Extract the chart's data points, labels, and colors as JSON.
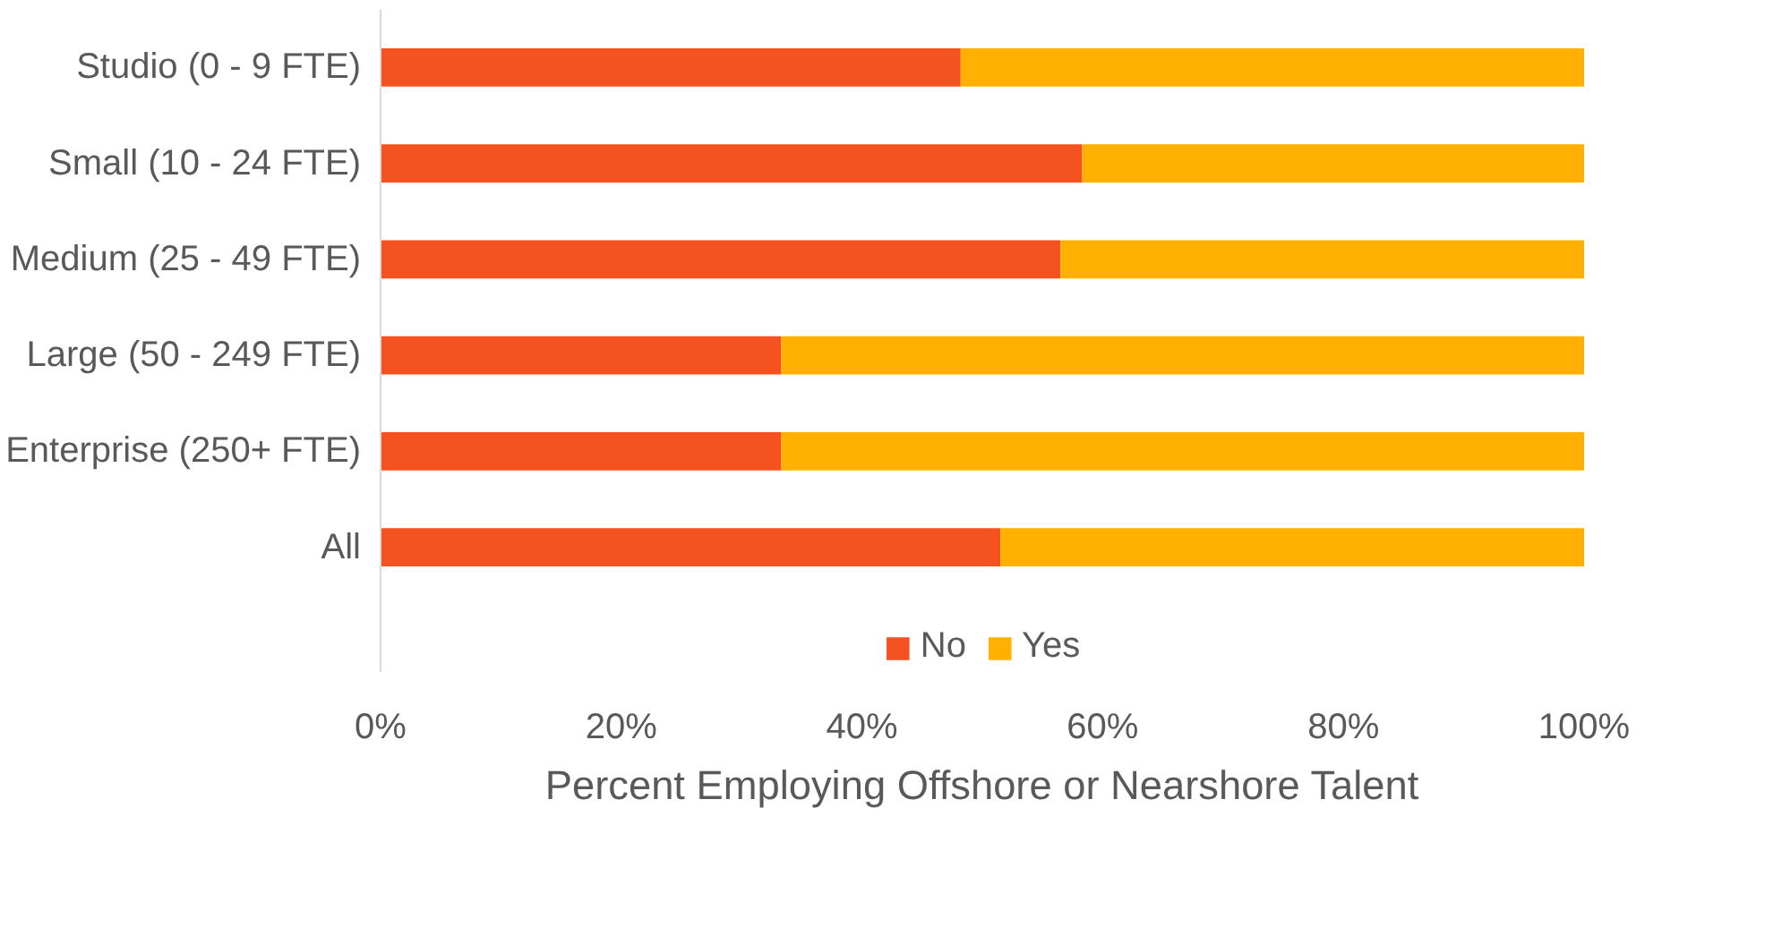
{
  "chart_data": {
    "type": "bar",
    "orientation": "horizontal",
    "stacked": true,
    "categories": [
      "Studio (0 - 9 FTE)",
      "Small (10 - 24 FTE)",
      "Medium (25 - 49 FTE)",
      "Large (50 - 249 FTE)",
      "Enterprise (250+ FTE)",
      "All"
    ],
    "series": [
      {
        "name": "No",
        "color": "#f55222",
        "values": [
          48.2,
          58.3,
          56.5,
          33.3,
          33.3,
          51.5
        ]
      },
      {
        "name": "Yes",
        "color": "#ffb000",
        "values": [
          51.8,
          41.7,
          43.5,
          66.7,
          66.7,
          48.5
        ]
      }
    ],
    "xlabel": "Percent Employing Offshore or Nearshore Talent",
    "xlim": [
      0,
      100
    ],
    "xticks": [
      {
        "value": 0,
        "label": "0%"
      },
      {
        "value": 20,
        "label": "20%"
      },
      {
        "value": 40,
        "label": "40%"
      },
      {
        "value": 60,
        "label": "60%"
      },
      {
        "value": 80,
        "label": "80%"
      },
      {
        "value": 100,
        "label": "100%"
      }
    ],
    "grid": false,
    "legend": "bottom"
  }
}
